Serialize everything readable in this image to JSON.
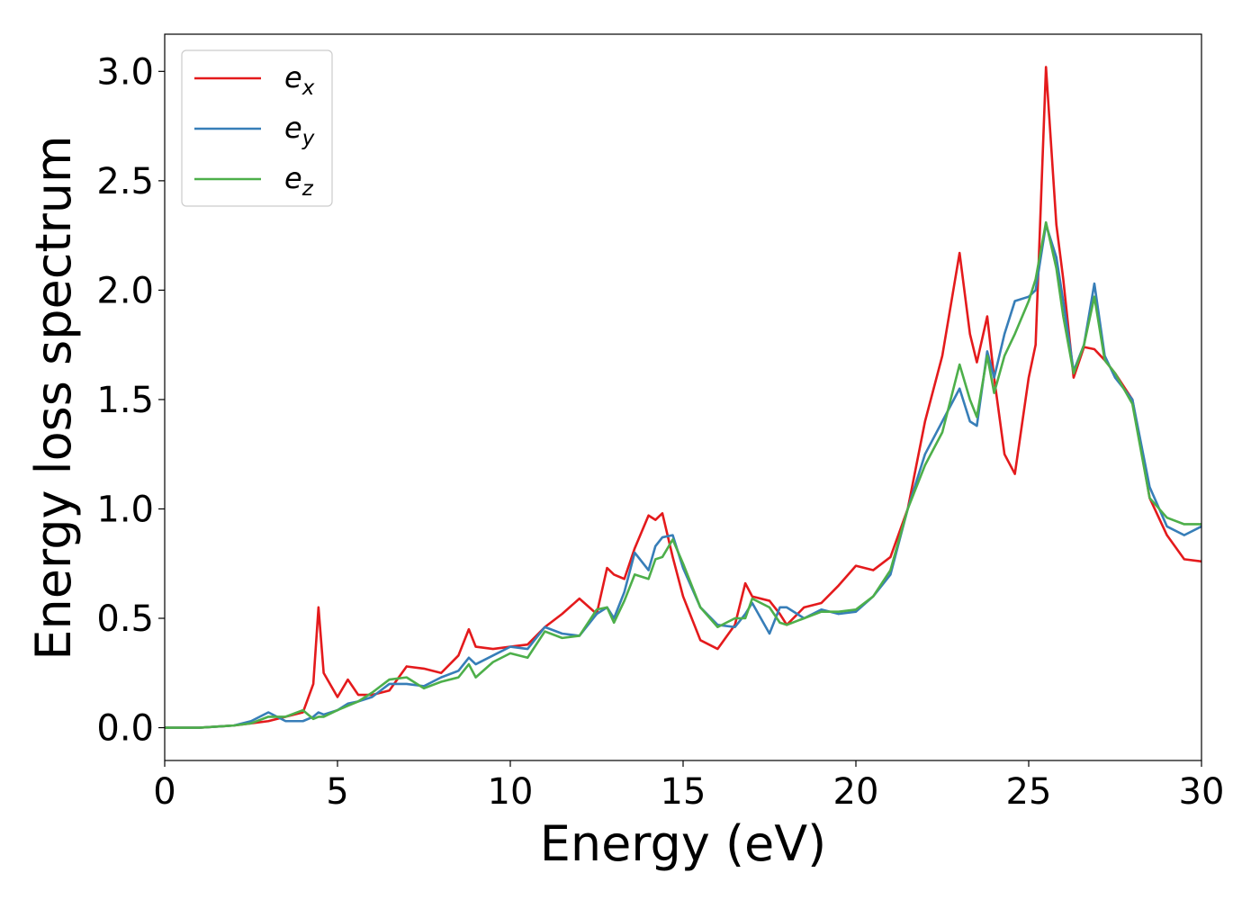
{
  "chart_data": {
    "type": "line",
    "xlabel": "Energy (eV)",
    "ylabel": "Energy loss spectrum",
    "xlim": [
      0,
      30
    ],
    "xticks": [
      0,
      5,
      10,
      15,
      20,
      25,
      30
    ],
    "ylim": [
      -0.15,
      3.17
    ],
    "yticks": [
      {
        "value": 0,
        "label": "0.0"
      },
      0.5,
      {
        "value": 1,
        "label": "1.0"
      },
      1.5,
      {
        "value": 2,
        "label": "2.0"
      },
      2.5,
      {
        "value": 3,
        "label": "3.0"
      }
    ],
    "legend": "upper left",
    "x": [
      0,
      1,
      2,
      2.5,
      3,
      3.5,
      4,
      4.3,
      4.45,
      4.6,
      5,
      5.3,
      5.6,
      6,
      6.5,
      7,
      7.5,
      8,
      8.5,
      8.8,
      9,
      9.5,
      10,
      10.5,
      11,
      11.5,
      12,
      12.5,
      12.8,
      13,
      13.3,
      13.6,
      14,
      14.2,
      14.4,
      14.7,
      15,
      15.5,
      16,
      16.5,
      16.8,
      17,
      17.5,
      17.8,
      18,
      18.5,
      19,
      19.5,
      20,
      20.5,
      21,
      21.5,
      22,
      22.5,
      23,
      23.3,
      23.5,
      23.8,
      24,
      24.3,
      24.6,
      25,
      25.2,
      25.5,
      25.8,
      26,
      26.3,
      26.6,
      26.9,
      27.2,
      27.5,
      28,
      28.5,
      29,
      29.5,
      30
    ],
    "series": [
      {
        "name": "ex",
        "color": "#e41a1c",
        "values": [
          0,
          0,
          0.01,
          0.02,
          0.03,
          0.05,
          0.07,
          0.2,
          0.55,
          0.25,
          0.14,
          0.22,
          0.15,
          0.15,
          0.17,
          0.28,
          0.27,
          0.25,
          0.33,
          0.45,
          0.37,
          0.36,
          0.37,
          0.38,
          0.46,
          0.52,
          0.59,
          0.52,
          0.73,
          0.7,
          0.68,
          0.82,
          0.97,
          0.95,
          0.98,
          0.78,
          0.6,
          0.4,
          0.36,
          0.47,
          0.66,
          0.6,
          0.58,
          0.52,
          0.47,
          0.55,
          0.57,
          0.65,
          0.74,
          0.72,
          0.78,
          1.0,
          1.4,
          1.7,
          2.17,
          1.8,
          1.67,
          1.88,
          1.6,
          1.25,
          1.16,
          1.6,
          1.75,
          3.02,
          2.3,
          2.05,
          1.6,
          1.74,
          1.73,
          1.68,
          1.62,
          1.5,
          1.05,
          0.88,
          0.77,
          0.76
        ]
      },
      {
        "name": "ey",
        "color": "#377eb8",
        "values": [
          0,
          0,
          0.01,
          0.03,
          0.07,
          0.03,
          0.03,
          0.05,
          0.07,
          0.06,
          0.08,
          0.11,
          0.12,
          0.14,
          0.2,
          0.2,
          0.19,
          0.23,
          0.26,
          0.32,
          0.29,
          0.33,
          0.37,
          0.36,
          0.46,
          0.43,
          0.42,
          0.52,
          0.55,
          0.5,
          0.62,
          0.8,
          0.72,
          0.83,
          0.87,
          0.88,
          0.73,
          0.55,
          0.47,
          0.46,
          0.52,
          0.57,
          0.43,
          0.55,
          0.55,
          0.5,
          0.54,
          0.52,
          0.53,
          0.6,
          0.7,
          1.0,
          1.25,
          1.4,
          1.55,
          1.4,
          1.38,
          1.72,
          1.6,
          1.8,
          1.95,
          1.97,
          2.0,
          2.3,
          2.15,
          1.95,
          1.63,
          1.75,
          2.03,
          1.7,
          1.6,
          1.5,
          1.1,
          0.92,
          0.88,
          0.92
        ]
      },
      {
        "name": "ez",
        "color": "#4daf4a",
        "values": [
          0,
          0,
          0.01,
          0.02,
          0.05,
          0.05,
          0.08,
          0.04,
          0.05,
          0.05,
          0.08,
          0.1,
          0.12,
          0.16,
          0.22,
          0.23,
          0.18,
          0.21,
          0.23,
          0.29,
          0.23,
          0.3,
          0.34,
          0.32,
          0.44,
          0.41,
          0.42,
          0.54,
          0.55,
          0.48,
          0.58,
          0.7,
          0.68,
          0.77,
          0.78,
          0.86,
          0.75,
          0.55,
          0.46,
          0.5,
          0.5,
          0.59,
          0.55,
          0.48,
          0.47,
          0.5,
          0.53,
          0.53,
          0.54,
          0.6,
          0.72,
          1.0,
          1.2,
          1.35,
          1.66,
          1.5,
          1.42,
          1.7,
          1.53,
          1.7,
          1.8,
          1.95,
          2.05,
          2.31,
          2.1,
          1.88,
          1.62,
          1.75,
          1.97,
          1.68,
          1.62,
          1.48,
          1.05,
          0.96,
          0.93,
          0.93
        ]
      }
    ]
  }
}
